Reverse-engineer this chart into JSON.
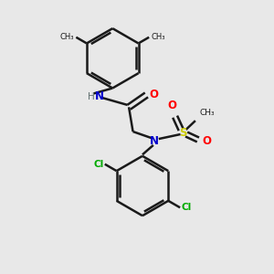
{
  "bg_color": "#e8e8e8",
  "bond_color": "#1a1a1a",
  "N_color": "#0000cc",
  "H_color": "#607070",
  "O_color": "#ff0000",
  "S_color": "#cccc00",
  "Cl_color": "#00aa00",
  "C_color": "#1a1a1a",
  "line_width": 1.8,
  "dbo": 0.08,
  "figsize": [
    3.0,
    3.0
  ],
  "dpi": 100,
  "xlim": [
    0,
    10
  ],
  "ylim": [
    0,
    10
  ]
}
